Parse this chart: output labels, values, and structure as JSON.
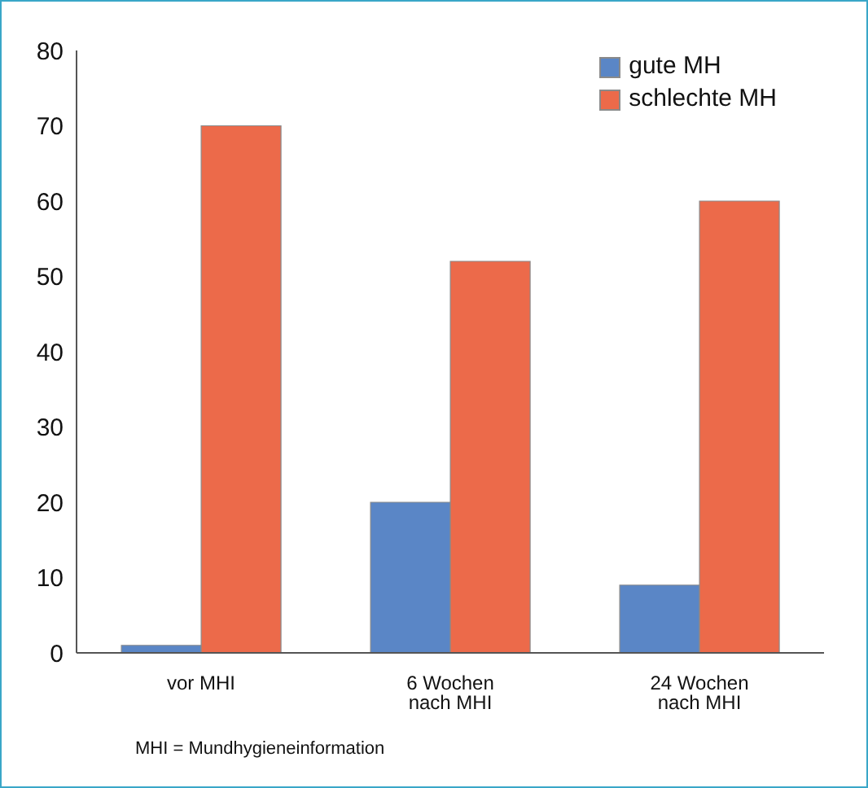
{
  "chart_data": {
    "type": "bar",
    "categories": [
      "vor MHI",
      "6 Wochen nach MHI",
      "24 Wochen nach MHI"
    ],
    "series": [
      {
        "name": "gute MH",
        "color": "#5a86c6",
        "values": [
          1,
          20,
          9
        ]
      },
      {
        "name": "schlechte MH",
        "color": "#ec6a4a",
        "values": [
          70,
          52,
          60
        ]
      }
    ],
    "ylim": [
      0,
      80
    ],
    "yticks": [
      0,
      10,
      20,
      30,
      40,
      50,
      60,
      70,
      80
    ],
    "grid": false,
    "legend": "top right",
    "annotations": [
      "MHI = Mundhygieneinformation"
    ]
  }
}
